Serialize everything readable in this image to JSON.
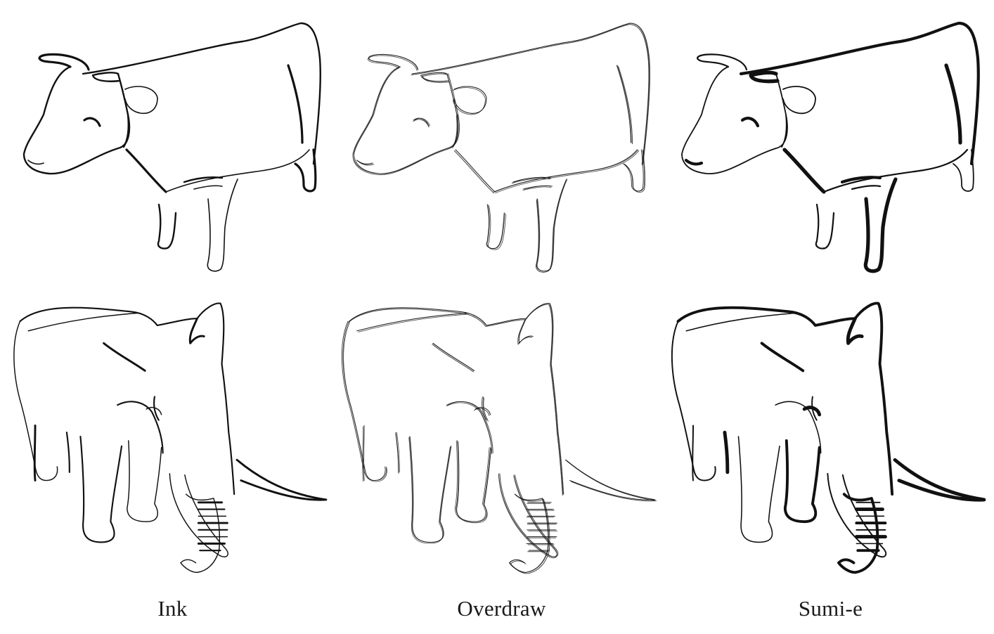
{
  "figure": {
    "styles": [
      {
        "key": "ink",
        "label": "Ink",
        "stroke_color": "#111111"
      },
      {
        "key": "overdraw",
        "label": "Overdraw",
        "stroke_color": "#333333"
      },
      {
        "key": "sumie",
        "label": "Sumi-e",
        "stroke_color": "#000000"
      }
    ],
    "subjects": [
      "cow",
      "elephant"
    ]
  }
}
